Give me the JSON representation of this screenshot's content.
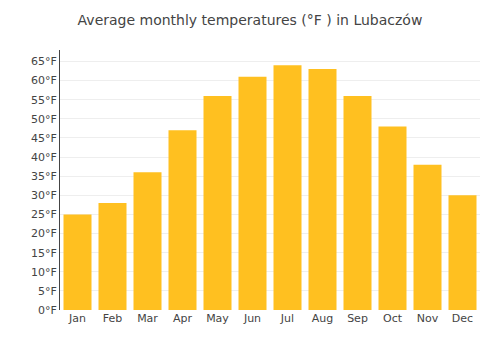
{
  "chart_data": {
    "type": "bar",
    "title": "Average monthly temperatures (°F ) in Lubaczów",
    "categories": [
      "Jan",
      "Feb",
      "Mar",
      "Apr",
      "May",
      "Jun",
      "Jul",
      "Aug",
      "Sep",
      "Oct",
      "Nov",
      "Dec"
    ],
    "values": [
      25,
      28,
      36,
      47,
      56,
      61,
      64,
      63,
      56,
      48,
      38,
      30
    ],
    "color": "#FFC020",
    "ylim": [
      0,
      68
    ],
    "yticks": [
      {
        "value": 0,
        "label": "0°F"
      },
      {
        "value": 5,
        "label": "5°F"
      },
      {
        "value": 10,
        "label": "10°F"
      },
      {
        "value": 15,
        "label": "15°F"
      },
      {
        "value": 20,
        "label": "20°F"
      },
      {
        "value": 25,
        "label": "25°F"
      },
      {
        "value": 30,
        "label": "30°F"
      },
      {
        "value": 35,
        "label": "35°F"
      },
      {
        "value": 40,
        "label": "40°F"
      },
      {
        "value": 45,
        "label": "45°F"
      },
      {
        "value": 50,
        "label": "50°F"
      },
      {
        "value": 55,
        "label": "55°F"
      },
      {
        "value": 60,
        "label": "60°F"
      },
      {
        "value": 65,
        "label": "65°F"
      }
    ],
    "grid": true
  }
}
